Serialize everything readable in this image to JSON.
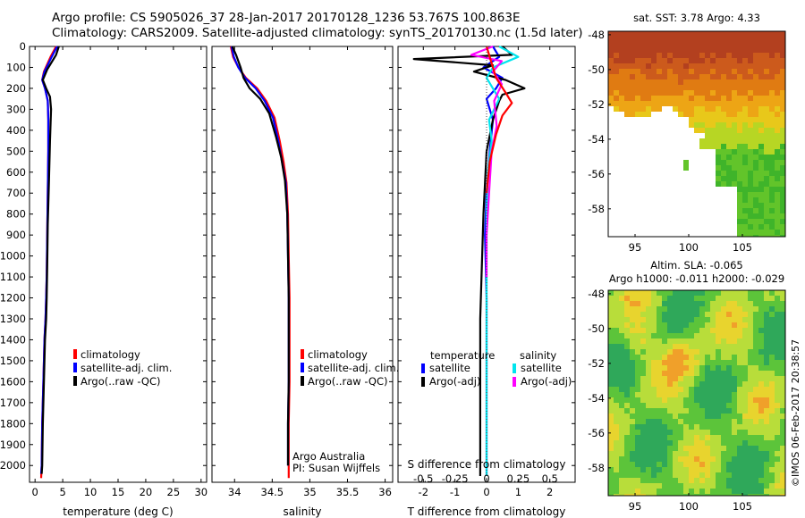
{
  "header": {
    "line1": "Argo profile: CS 5905026_37 28-Jan-2017 20170128_1236 53.767S 100.863E",
    "line2": "Climatology: CARS2009. Satellite-adjusted climatology: synTS_20170130.nc (1.5d later)"
  },
  "credit": "©IMOS 06-Feb-2017 20:38:57",
  "colors": {
    "climatology": "#ff0000",
    "satellite": "#0000ff",
    "argo": "#000000",
    "sal_satellite": "#00e5ee",
    "sal_argo": "#ff00ff"
  },
  "chart_data": [
    {
      "type": "line",
      "panel": "temperature",
      "xlabel": "temperature (deg C)",
      "ylabel": "",
      "xlim": [
        -1,
        31
      ],
      "ylim": [
        2080,
        0
      ],
      "xticks": [
        0,
        5,
        10,
        15,
        20,
        25,
        30
      ],
      "yticks": [
        0,
        100,
        200,
        300,
        400,
        500,
        600,
        700,
        800,
        900,
        1000,
        1100,
        1200,
        1300,
        1400,
        1500,
        1600,
        1700,
        1800,
        1900,
        2000
      ],
      "legend": [
        "climatology",
        "satellite-adj. clim.",
        "Argo(..raw -QC)"
      ],
      "series": [
        {
          "name": "climatology",
          "color": "#ff0000",
          "x": [
            3.8,
            2.8,
            1.6,
            1.3,
            1.8,
            2.3,
            2.4,
            2.4,
            2.3,
            2.2,
            2.1,
            2.0,
            1.9,
            1.7,
            1.5,
            1.3,
            1.2,
            1.1
          ],
          "y": [
            0,
            50,
            120,
            160,
            200,
            260,
            350,
            500,
            700,
            900,
            1100,
            1200,
            1300,
            1400,
            1600,
            1800,
            2000,
            2060
          ]
        },
        {
          "name": "satellite-adj. clim.",
          "color": "#0000ff",
          "x": [
            4.0,
            3.0,
            1.7,
            1.3,
            1.8,
            2.3,
            2.4,
            2.4,
            2.3,
            2.2,
            2.1,
            2.0,
            1.9,
            1.7,
            1.5,
            1.3,
            1.2,
            1.1
          ],
          "y": [
            0,
            50,
            120,
            160,
            200,
            260,
            350,
            500,
            700,
            900,
            1100,
            1200,
            1300,
            1400,
            1600,
            1800,
            2000,
            2040
          ]
        },
        {
          "name": "Argo(..raw -QC)",
          "color": "#000000",
          "x": [
            4.3,
            3.8,
            2.2,
            1.4,
            2.0,
            2.7,
            2.9,
            2.7,
            2.5,
            2.3,
            2.2,
            2.1,
            2.0,
            1.8,
            1.6,
            1.4,
            1.3,
            1.2
          ],
          "y": [
            0,
            40,
            110,
            160,
            200,
            240,
            300,
            450,
            650,
            850,
            1050,
            1200,
            1300,
            1400,
            1600,
            1800,
            2000,
            2040
          ]
        }
      ]
    },
    {
      "type": "line",
      "panel": "salinity",
      "xlabel": "salinity",
      "ylabel": "",
      "xlim": [
        33.7,
        36.1
      ],
      "ylim": [
        2080,
        0
      ],
      "xticks": [
        34,
        34.5,
        35,
        35.5,
        36
      ],
      "xtick_labels": [
        "34",
        "34.5",
        "35",
        "35.5",
        "36"
      ],
      "legend": [
        "climatology",
        "satellite-adj. clim.",
        "Argo(..raw -QC)"
      ],
      "annotations": [
        "Argo Australia",
        "PI: Susan Wijffels"
      ],
      "series": [
        {
          "name": "climatology",
          "color": "#ff0000",
          "x": [
            33.95,
            33.98,
            34.05,
            34.15,
            34.3,
            34.42,
            34.53,
            34.6,
            34.65,
            34.69,
            34.71,
            34.72,
            34.73,
            34.73,
            34.73,
            34.72,
            34.72
          ],
          "y": [
            0,
            50,
            100,
            150,
            200,
            260,
            340,
            450,
            550,
            650,
            800,
            1000,
            1200,
            1400,
            1600,
            1800,
            2060
          ]
        },
        {
          "name": "satellite-adj. clim.",
          "color": "#0000ff",
          "x": [
            33.96,
            33.99,
            34.05,
            34.14,
            34.28,
            34.4,
            34.51,
            34.58,
            34.63,
            34.68,
            34.7,
            34.71,
            34.72,
            34.72,
            34.72,
            34.71,
            34.71
          ],
          "y": [
            0,
            50,
            100,
            150,
            200,
            260,
            340,
            450,
            550,
            650,
            800,
            1000,
            1200,
            1400,
            1600,
            1800,
            2000
          ]
        },
        {
          "name": "Argo(..raw -QC)",
          "color": "#000000",
          "x": [
            33.97,
            34.02,
            34.08,
            34.12,
            34.2,
            34.34,
            34.46,
            34.55,
            34.62,
            34.67,
            34.7,
            34.71,
            34.72,
            34.72,
            34.72,
            34.71,
            34.71
          ],
          "y": [
            0,
            40,
            100,
            150,
            200,
            250,
            320,
            430,
            530,
            640,
            800,
            1000,
            1200,
            1400,
            1600,
            1800,
            2000
          ]
        }
      ]
    },
    {
      "type": "line",
      "panel": "difference",
      "xlabel": "T difference from climatology",
      "xlabel_top": "S difference from climatology",
      "ylabel": "",
      "xlim": [
        -2.8,
        2.8
      ],
      "ylim": [
        2080,
        0
      ],
      "xticks": [
        -2,
        -1,
        0,
        1,
        2
      ],
      "sticks": [
        -0.5,
        -0.25,
        0,
        0.25,
        0.5
      ],
      "s_scale": 4,
      "legend_headers": [
        "temperature",
        "salinity"
      ],
      "legend": [
        "satellite",
        "Argo(-adj)",
        "satellite",
        "Argo(-adj)"
      ],
      "series": [
        {
          "name": "satellite",
          "group": "temperature",
          "color": "#0000ff",
          "x": [
            0.2,
            0.4,
            -0.1,
            0.5,
            0.3,
            0.0,
            0.2,
            0.1,
            0.0,
            -0.05,
            0.0,
            0.0
          ],
          "y": [
            0,
            50,
            100,
            150,
            200,
            250,
            350,
            500,
            700,
            900,
            1200,
            2050
          ]
        },
        {
          "name": "Argo(-adj)",
          "group": "temperature",
          "color": "#000000",
          "x": [
            0.5,
            0.8,
            -2.3,
            0.2,
            -0.4,
            0.6,
            1.2,
            0.5,
            0.4,
            0.2,
            0.0,
            -0.1,
            -0.2,
            -0.2
          ],
          "y": [
            0,
            40,
            60,
            90,
            120,
            160,
            200,
            230,
            260,
            350,
            500,
            800,
            1300,
            2050
          ]
        },
        {
          "name": "satellite",
          "group": "salinity",
          "color": "#00e5ee",
          "x": [
            0.1,
            0.25,
            0.05,
            0.0,
            0.1,
            0.02,
            0.04,
            0.01,
            0.0,
            0.0
          ],
          "y": [
            0,
            50,
            100,
            150,
            250,
            350,
            450,
            600,
            800,
            2050
          ]
        },
        {
          "name": "Argo(-adj)",
          "group": "salinity",
          "color": "#ff00ff",
          "x": [
            0.05,
            -0.12,
            0.12,
            0.05,
            0.12,
            0.06,
            0.08,
            0.04,
            0.02,
            0.0,
            0.0
          ],
          "y": [
            0,
            40,
            70,
            120,
            180,
            260,
            380,
            500,
            700,
            900,
            1100
          ]
        },
        {
          "name": "climatology",
          "group": "reference",
          "color": "#ff0000",
          "x": [
            0.0,
            0.3,
            0.6,
            0.8,
            0.5,
            0.3,
            0.1,
            0.0
          ],
          "y": [
            0,
            150,
            220,
            270,
            330,
            420,
            550,
            700
          ]
        }
      ]
    },
    {
      "type": "heatmap",
      "panel": "sst-map",
      "title": "sat. SST: 3.78 Argo: 4.33",
      "xlim": [
        92.5,
        109
      ],
      "ylim": [
        -59.6,
        -47.8
      ],
      "xticks": [
        95,
        100,
        105
      ],
      "yticks": [
        -48,
        -50,
        -52,
        -54,
        -56,
        -58
      ]
    },
    {
      "type": "heatmap",
      "panel": "sla-map",
      "title": "Altim. SLA: -0.065",
      "subtitle": "Argo h1000: -0.011 h2000: -0.029",
      "xlim": [
        92.5,
        109
      ],
      "ylim": [
        -59.6,
        -47.8
      ],
      "xticks": [
        95,
        100,
        105
      ],
      "yticks": [
        -48,
        -50,
        -52,
        -54,
        -56,
        -58
      ]
    }
  ]
}
